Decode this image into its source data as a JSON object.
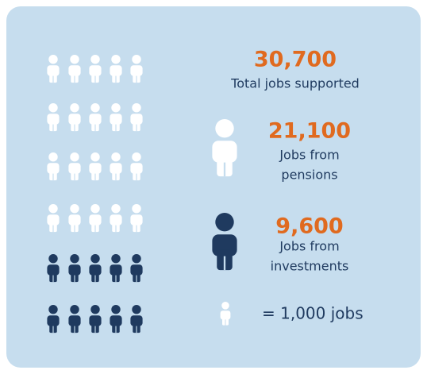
{
  "total": {
    "value": "30,700",
    "label": [
      "Total jobs supported"
    ]
  },
  "pensions": {
    "value": "21,100",
    "label": [
      "Jobs from",
      "pensions"
    ]
  },
  "investments": {
    "value": "9,600",
    "label": [
      "Jobs from",
      "investments"
    ]
  },
  "key": "= 1,000 jobs"
}
